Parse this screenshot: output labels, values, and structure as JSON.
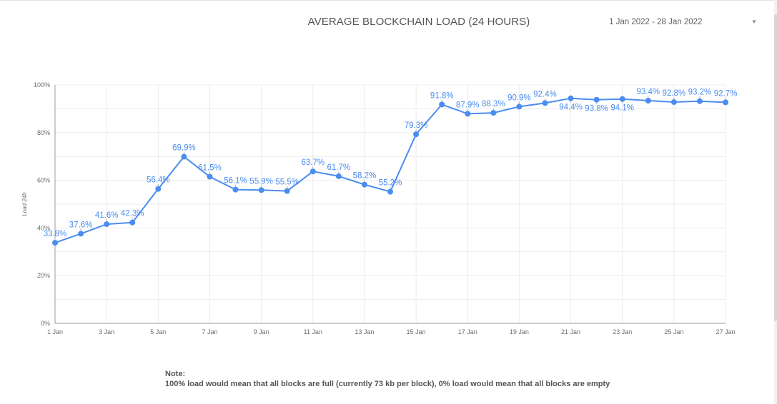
{
  "title": "AVERAGE BLOCKCHAIN LOAD (24 HOURS)",
  "date_range": {
    "label": "1 Jan 2022 - 28 Jan 2022",
    "caret_icon": "caret-down-icon"
  },
  "note": {
    "heading": "Note:",
    "text": "100% load would mean that all blocks are full (currently 73 kb per block), 0% load would mean that all blocks are empty"
  },
  "colors": {
    "series": "#4a8cf0",
    "label": "#4a8cf0",
    "grid": "#ececec",
    "axis": "#6b6b6b"
  },
  "chart_data": {
    "type": "line",
    "title": "AVERAGE BLOCKCHAIN LOAD (24 HOURS)",
    "xlabel": "",
    "ylabel": "Load 24h",
    "x": [
      "1 Jan",
      "2 Jan",
      "3 Jan",
      "4 Jan",
      "5 Jan",
      "6 Jan",
      "7 Jan",
      "8 Jan",
      "9 Jan",
      "10 Jan",
      "11 Jan",
      "12 Jan",
      "13 Jan",
      "14 Jan",
      "15 Jan",
      "16 Jan",
      "17 Jan",
      "18 Jan",
      "19 Jan",
      "20 Jan",
      "21 Jan",
      "22 Jan",
      "23 Jan",
      "24 Jan",
      "25 Jan",
      "26 Jan",
      "27 Jan"
    ],
    "x_tick_labels": [
      "1 Jan",
      "3 Jan",
      "5 Jan",
      "7 Jan",
      "9 Jan",
      "11 Jan",
      "13 Jan",
      "15 Jan",
      "17 Jan",
      "19 Jan",
      "21 Jan",
      "23 Jan",
      "25 Jan",
      "27 Jan"
    ],
    "values": [
      33.8,
      37.6,
      41.6,
      42.3,
      56.4,
      69.9,
      61.5,
      56.1,
      55.9,
      55.5,
      63.7,
      61.7,
      58.2,
      55.2,
      79.3,
      91.8,
      87.9,
      88.3,
      90.9,
      92.4,
      94.4,
      93.8,
      94.1,
      93.4,
      92.8,
      93.2,
      92.7
    ],
    "data_labels": [
      "33.8%",
      "37.6%",
      "41.6%",
      "42.3%",
      "56.4%",
      "69.9%",
      "61.5%",
      "56.1%",
      "55.9%",
      "55.5%",
      "63.7%",
      "61.7%",
      "58.2%",
      "55.2%",
      "79.3%",
      "91.8%",
      "87.9%",
      "88.3%",
      "90.9%",
      "92.4%",
      "94.4%",
      "93.8%",
      "94.1%",
      "93.4%",
      "92.8%",
      "93.2%",
      "92.7%"
    ],
    "ylim": [
      0,
      100
    ],
    "y_tick_labels": [
      "0%",
      "20%",
      "40%",
      "60%",
      "80%",
      "100%"
    ],
    "grid": true,
    "legend": "none"
  }
}
